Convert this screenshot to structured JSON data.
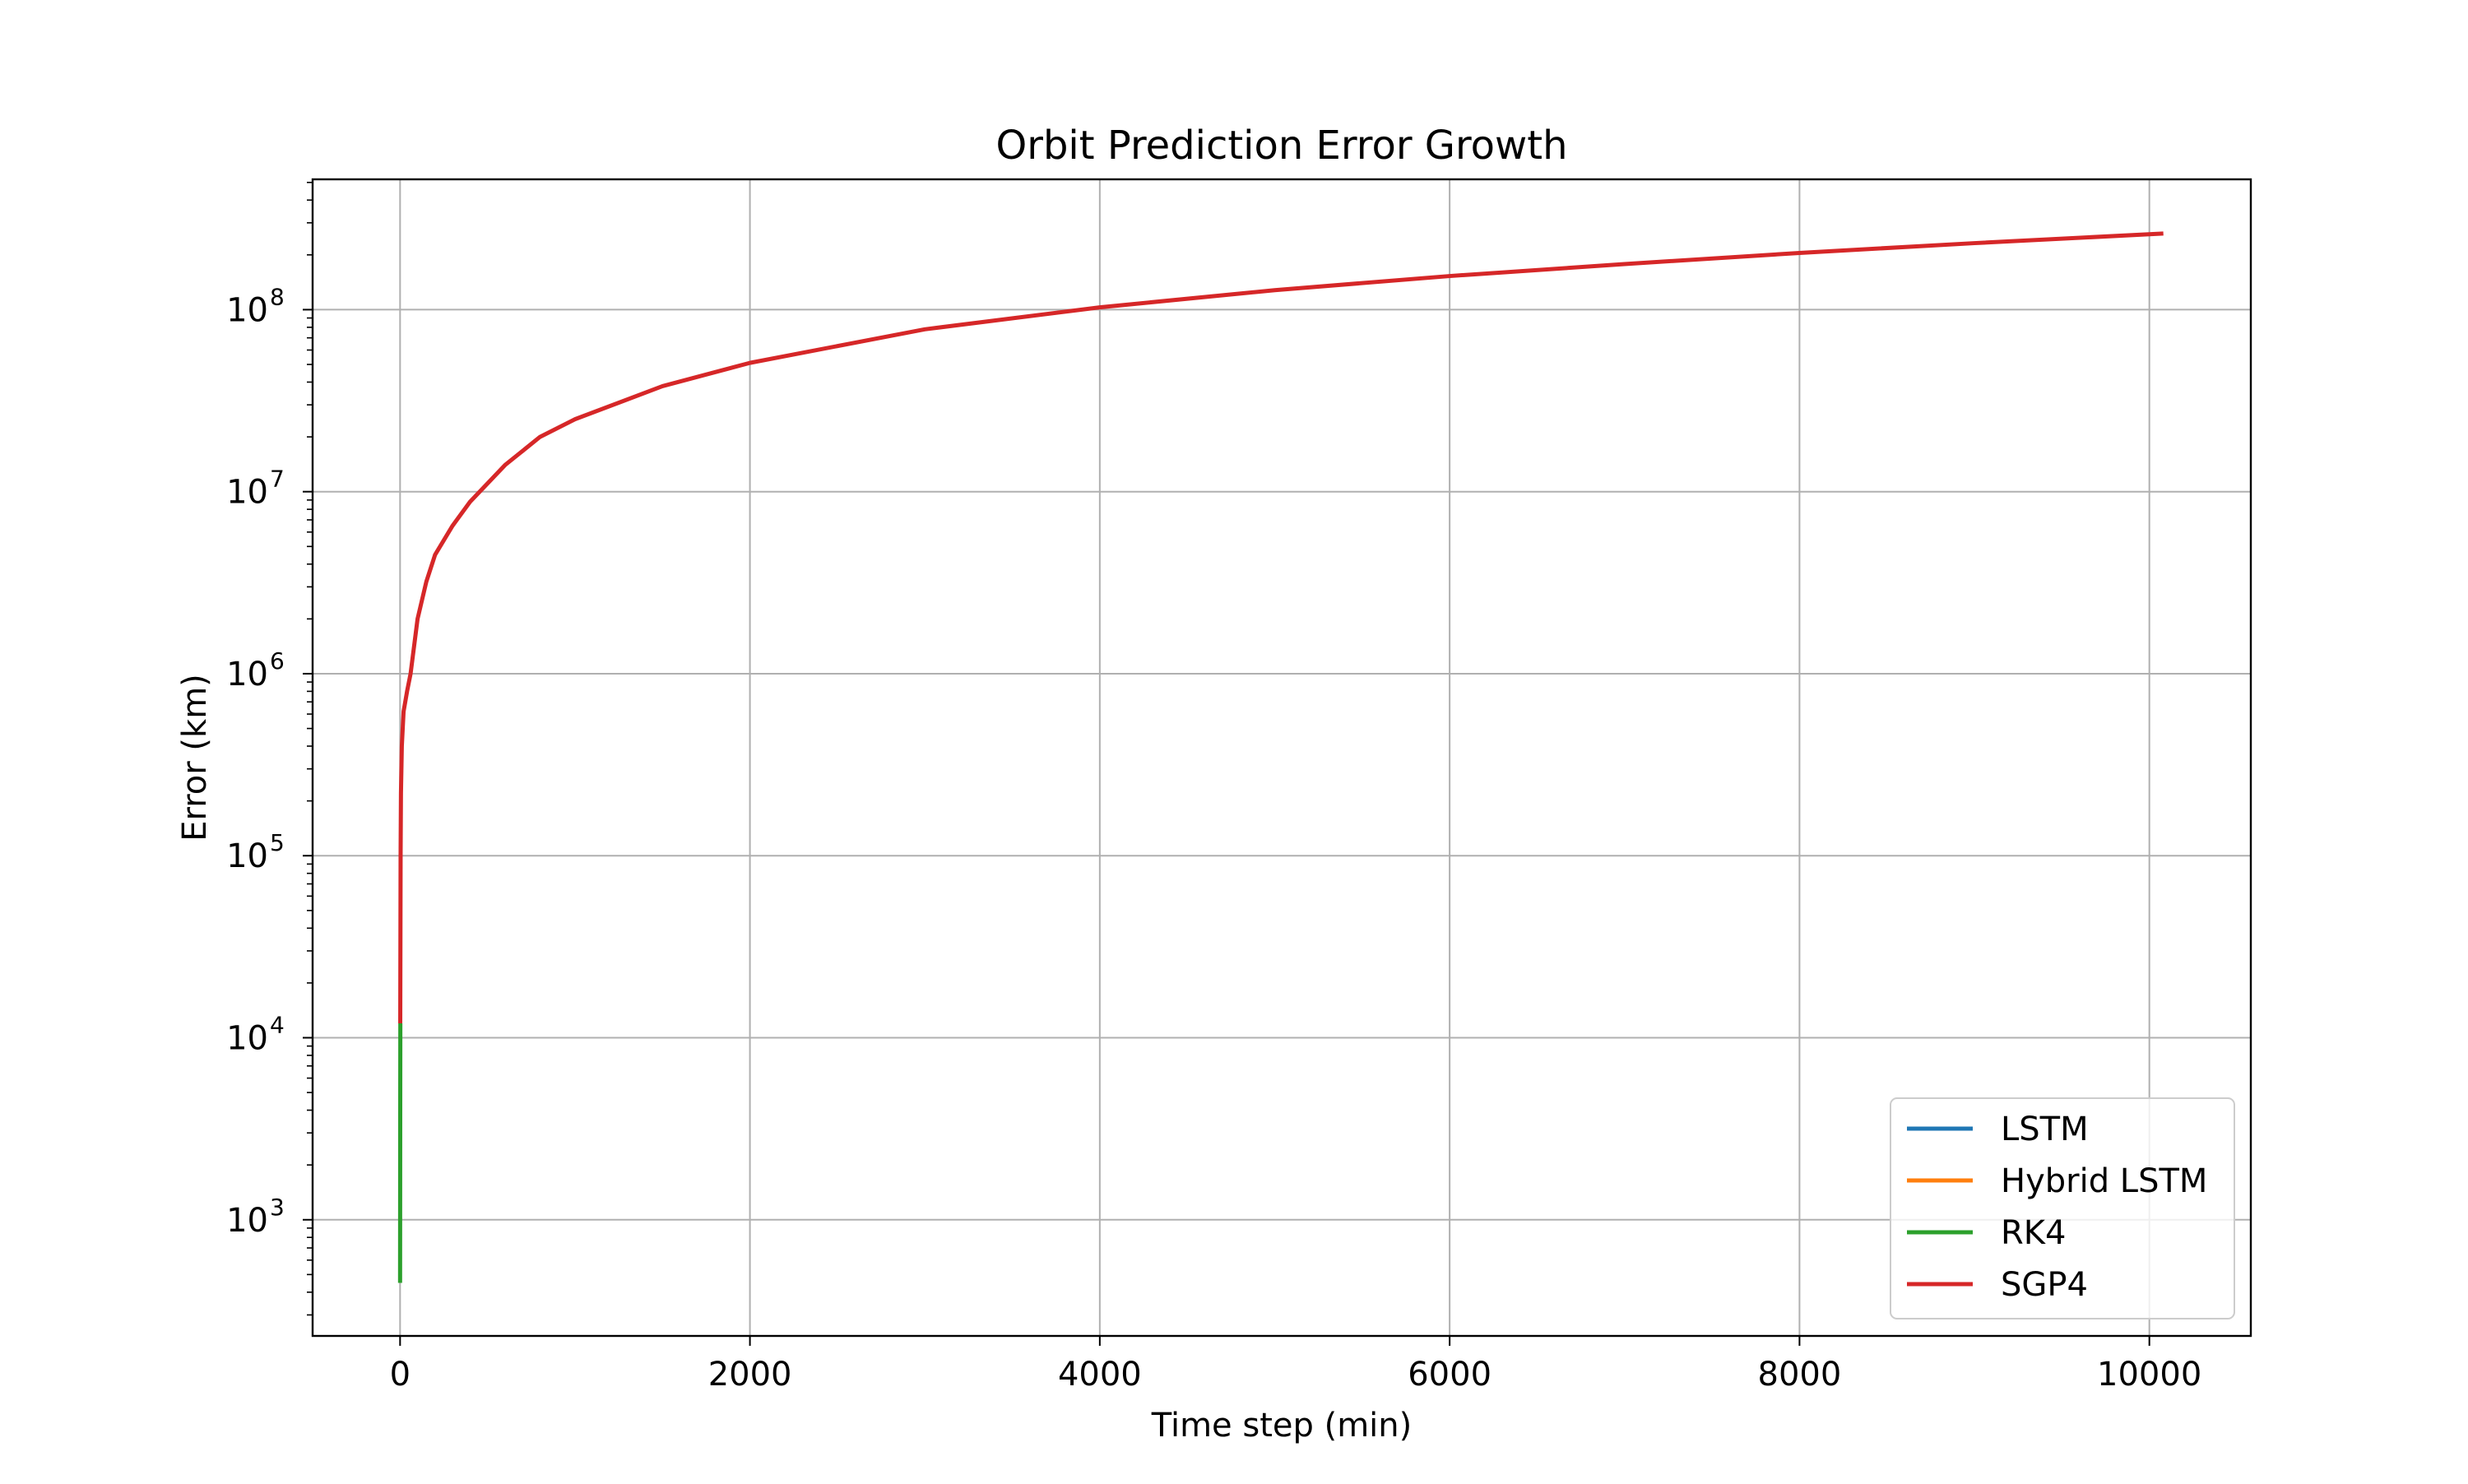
{
  "chart_data": {
    "type": "line",
    "title": "Orbit Prediction Error Growth",
    "xlabel": "Time step (min)",
    "ylabel": "Error (km)",
    "xlim": [
      -500,
      10580
    ],
    "ylim": [
      230,
      520000000
    ],
    "yscale": "log",
    "grid": true,
    "legend_position": "lower-right",
    "xticks": [
      {
        "value": 0,
        "label": "0"
      },
      {
        "value": 2000,
        "label": "2000"
      },
      {
        "value": 4000,
        "label": "4000"
      },
      {
        "value": 6000,
        "label": "6000"
      },
      {
        "value": 8000,
        "label": "8000"
      },
      {
        "value": 10000,
        "label": "10000"
      }
    ],
    "yticks": [
      {
        "value": 1000,
        "base": "10",
        "exp": "3"
      },
      {
        "value": 10000,
        "base": "10",
        "exp": "4"
      },
      {
        "value": 100000,
        "base": "10",
        "exp": "5"
      },
      {
        "value": 1000000,
        "base": "10",
        "exp": "6"
      },
      {
        "value": 10000000,
        "base": "10",
        "exp": "7"
      },
      {
        "value": 100000000,
        "base": "10",
        "exp": "8"
      }
    ],
    "series": [
      {
        "name": "LSTM",
        "color": "#1f77b4",
        "points": []
      },
      {
        "name": "Hybrid LSTM",
        "color": "#ff7f0e",
        "points": []
      },
      {
        "name": "RK4",
        "color": "#2ca02c",
        "points": [
          [
            0,
            450
          ],
          [
            0.5,
            1500
          ],
          [
            1,
            5000
          ],
          [
            1.5,
            12000
          ]
        ]
      },
      {
        "name": "SGP4",
        "color": "#d62728",
        "points": [
          [
            1,
            12000
          ],
          [
            3,
            100000
          ],
          [
            5,
            220000
          ],
          [
            10,
            400000
          ],
          [
            20,
            620000
          ],
          [
            40,
            800000
          ],
          [
            60,
            1000000
          ],
          [
            100,
            2000000
          ],
          [
            150,
            3200000
          ],
          [
            200,
            4500000
          ],
          [
            300,
            6500000
          ],
          [
            400,
            8800000
          ],
          [
            600,
            14000000
          ],
          [
            800,
            20000000
          ],
          [
            1000,
            25000000
          ],
          [
            1500,
            38000000
          ],
          [
            2000,
            51000000
          ],
          [
            3000,
            78000000
          ],
          [
            4000,
            103000000
          ],
          [
            5000,
            128000000
          ],
          [
            6000,
            153000000
          ],
          [
            7000,
            178000000
          ],
          [
            8000,
            205000000
          ],
          [
            9000,
            232000000
          ],
          [
            10080,
            262000000
          ]
        ]
      }
    ]
  }
}
